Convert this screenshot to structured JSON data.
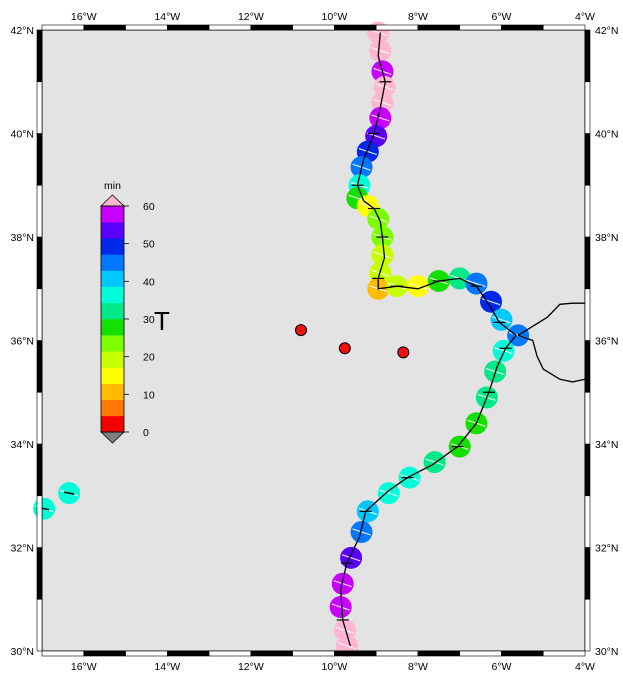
{
  "map": {
    "lon_range": [
      -17,
      -4
    ],
    "lat_range": [
      30,
      42
    ],
    "frame_bg": "#e3e3e3",
    "x_ticks": [
      {
        "lon": -16,
        "label": "16°W"
      },
      {
        "lon": -14,
        "label": "14°W"
      },
      {
        "lon": -12,
        "label": "12°W"
      },
      {
        "lon": -10,
        "label": "10°W"
      },
      {
        "lon": -8,
        "label": "8°W"
      },
      {
        "lon": -6,
        "label": "6°W"
      },
      {
        "lon": -4,
        "label": "4°W"
      }
    ],
    "y_ticks": [
      {
        "lat": 30,
        "label": "30°N"
      },
      {
        "lat": 32,
        "label": "32°N"
      },
      {
        "lat": 34,
        "label": "34°N"
      },
      {
        "lat": 36,
        "label": "36°N"
      },
      {
        "lat": 38,
        "label": "38°N"
      },
      {
        "lat": 40,
        "label": "40°N"
      },
      {
        "lat": 42,
        "label": "42°N"
      }
    ]
  },
  "colorbar": {
    "unit_label": "min",
    "title": "T",
    "tick_labels": [
      "0",
      "10",
      "20",
      "30",
      "40",
      "50",
      "60"
    ],
    "colors": [
      "#f50000",
      "#ff7a00",
      "#ffbb00",
      "#ffff00",
      "#c8ff00",
      "#7dff00",
      "#14e000",
      "#00e888",
      "#00ffd8",
      "#00c8ff",
      "#0078ff",
      "#0028e8",
      "#5a00ff",
      "#c800ff"
    ],
    "below_color": "#808080",
    "above_color": "#ffb6d0"
  },
  "epicenters": [
    {
      "lon": -10.8,
      "lat": 36.2
    },
    {
      "lon": -9.75,
      "lat": 35.85
    },
    {
      "lon": -8.35,
      "lat": 35.77
    }
  ],
  "coast_segments": [
    {
      "t": 60,
      "lon": -8.95,
      "lat": 41.95
    },
    {
      "t": 60,
      "lon": -8.9,
      "lat": 41.6
    },
    {
      "t": 58,
      "lon": -8.85,
      "lat": 41.2
    },
    {
      "t": 60,
      "lon": -8.8,
      "lat": 40.9
    },
    {
      "t": 60,
      "lon": -8.85,
      "lat": 40.6
    },
    {
      "t": 57,
      "lon": -8.9,
      "lat": 40.3
    },
    {
      "t": 52,
      "lon": -9.0,
      "lat": 39.95
    },
    {
      "t": 49,
      "lon": -9.2,
      "lat": 39.65
    },
    {
      "t": 44,
      "lon": -9.35,
      "lat": 39.35
    },
    {
      "t": 36,
      "lon": -9.4,
      "lat": 39.0
    },
    {
      "t": 28,
      "lon": -9.45,
      "lat": 38.75
    },
    {
      "t": 16,
      "lon": -9.2,
      "lat": 38.6
    },
    {
      "t": 24,
      "lon": -8.95,
      "lat": 38.35
    },
    {
      "t": 22,
      "lon": -8.85,
      "lat": 38.0
    },
    {
      "t": 21,
      "lon": -8.85,
      "lat": 37.65
    },
    {
      "t": 19,
      "lon": -8.9,
      "lat": 37.3
    },
    {
      "t": 9,
      "lon": -8.95,
      "lat": 37.0
    },
    {
      "t": 19,
      "lon": -8.5,
      "lat": 37.05
    },
    {
      "t": 15,
      "lon": -8.0,
      "lat": 37.05
    },
    {
      "t": 27,
      "lon": -7.5,
      "lat": 37.15
    },
    {
      "t": 33,
      "lon": -7.0,
      "lat": 37.2
    },
    {
      "t": 47,
      "lon": -6.6,
      "lat": 37.1
    },
    {
      "t": 50,
      "lon": -6.25,
      "lat": 36.75
    },
    {
      "t": 39,
      "lon": -6.0,
      "lat": 36.4
    },
    {
      "t": 44,
      "lon": -5.6,
      "lat": 36.1
    },
    {
      "t": 38,
      "lon": -5.95,
      "lat": 35.8
    },
    {
      "t": 34,
      "lon": -6.15,
      "lat": 35.4
    },
    {
      "t": 31,
      "lon": -6.35,
      "lat": 34.9
    },
    {
      "t": 27,
      "lon": -6.6,
      "lat": 34.4
    },
    {
      "t": 29,
      "lon": -7.0,
      "lat": 33.95
    },
    {
      "t": 33,
      "lon": -7.6,
      "lat": 33.65
    },
    {
      "t": 35,
      "lon": -8.2,
      "lat": 33.35
    },
    {
      "t": 38,
      "lon": -8.7,
      "lat": 33.05
    },
    {
      "t": 40,
      "lon": -9.2,
      "lat": 32.7
    },
    {
      "t": 46,
      "lon": -9.35,
      "lat": 32.3
    },
    {
      "t": 52,
      "lon": -9.6,
      "lat": 31.8
    },
    {
      "t": 56,
      "lon": -9.8,
      "lat": 31.3
    },
    {
      "t": 58,
      "lon": -9.85,
      "lat": 30.85
    },
    {
      "t": 60,
      "lon": -9.75,
      "lat": 30.4
    },
    {
      "t": 60,
      "lon": -9.7,
      "lat": 30.1
    }
  ],
  "islands": [
    {
      "t": 37,
      "lon": -16.95,
      "lat": 32.75
    },
    {
      "t": 37,
      "lon": -16.35,
      "lat": 33.05
    }
  ],
  "coast_lines": [
    [
      [
        -8.9,
        41.95
      ],
      [
        -8.95,
        41.5
      ],
      [
        -8.78,
        41.0
      ],
      [
        -8.9,
        40.5
      ],
      [
        -9.05,
        40.0
      ],
      [
        -9.3,
        39.5
      ],
      [
        -9.45,
        39.0
      ],
      [
        -9.3,
        38.7
      ],
      [
        -9.05,
        38.55
      ],
      [
        -8.9,
        38.3
      ],
      [
        -8.85,
        38.0
      ],
      [
        -8.8,
        37.6
      ],
      [
        -8.95,
        37.2
      ],
      [
        -8.95,
        37.0
      ],
      [
        -8.5,
        37.05
      ],
      [
        -8.0,
        37.0
      ],
      [
        -7.5,
        37.15
      ],
      [
        -7.0,
        37.2
      ],
      [
        -6.6,
        37.05
      ],
      [
        -6.3,
        36.7
      ],
      [
        -6.05,
        36.35
      ],
      [
        -5.65,
        36.1
      ],
      [
        -5.9,
        35.85
      ],
      [
        -6.1,
        35.5
      ],
      [
        -6.3,
        35.0
      ],
      [
        -6.6,
        34.4
      ],
      [
        -7.05,
        33.95
      ],
      [
        -7.65,
        33.6
      ],
      [
        -8.25,
        33.35
      ],
      [
        -8.7,
        33.1
      ],
      [
        -9.25,
        32.7
      ],
      [
        -9.4,
        32.2
      ],
      [
        -9.7,
        31.7
      ],
      [
        -9.85,
        31.2
      ],
      [
        -9.8,
        30.6
      ],
      [
        -9.62,
        30.1
      ]
    ]
  ],
  "land_lines": [
    [
      [
        -5.6,
        36.1
      ],
      [
        -5.3,
        36.25
      ],
      [
        -4.9,
        36.45
      ],
      [
        -4.6,
        36.7
      ],
      [
        -4.3,
        36.72
      ],
      [
        -4.0,
        36.72
      ]
    ],
    [
      [
        -5.6,
        36.1
      ],
      [
        -5.25,
        36.0
      ],
      [
        -5.15,
        35.7
      ],
      [
        -5.0,
        35.45
      ],
      [
        -4.6,
        35.25
      ],
      [
        -4.3,
        35.2
      ],
      [
        -4.0,
        35.25
      ]
    ]
  ]
}
